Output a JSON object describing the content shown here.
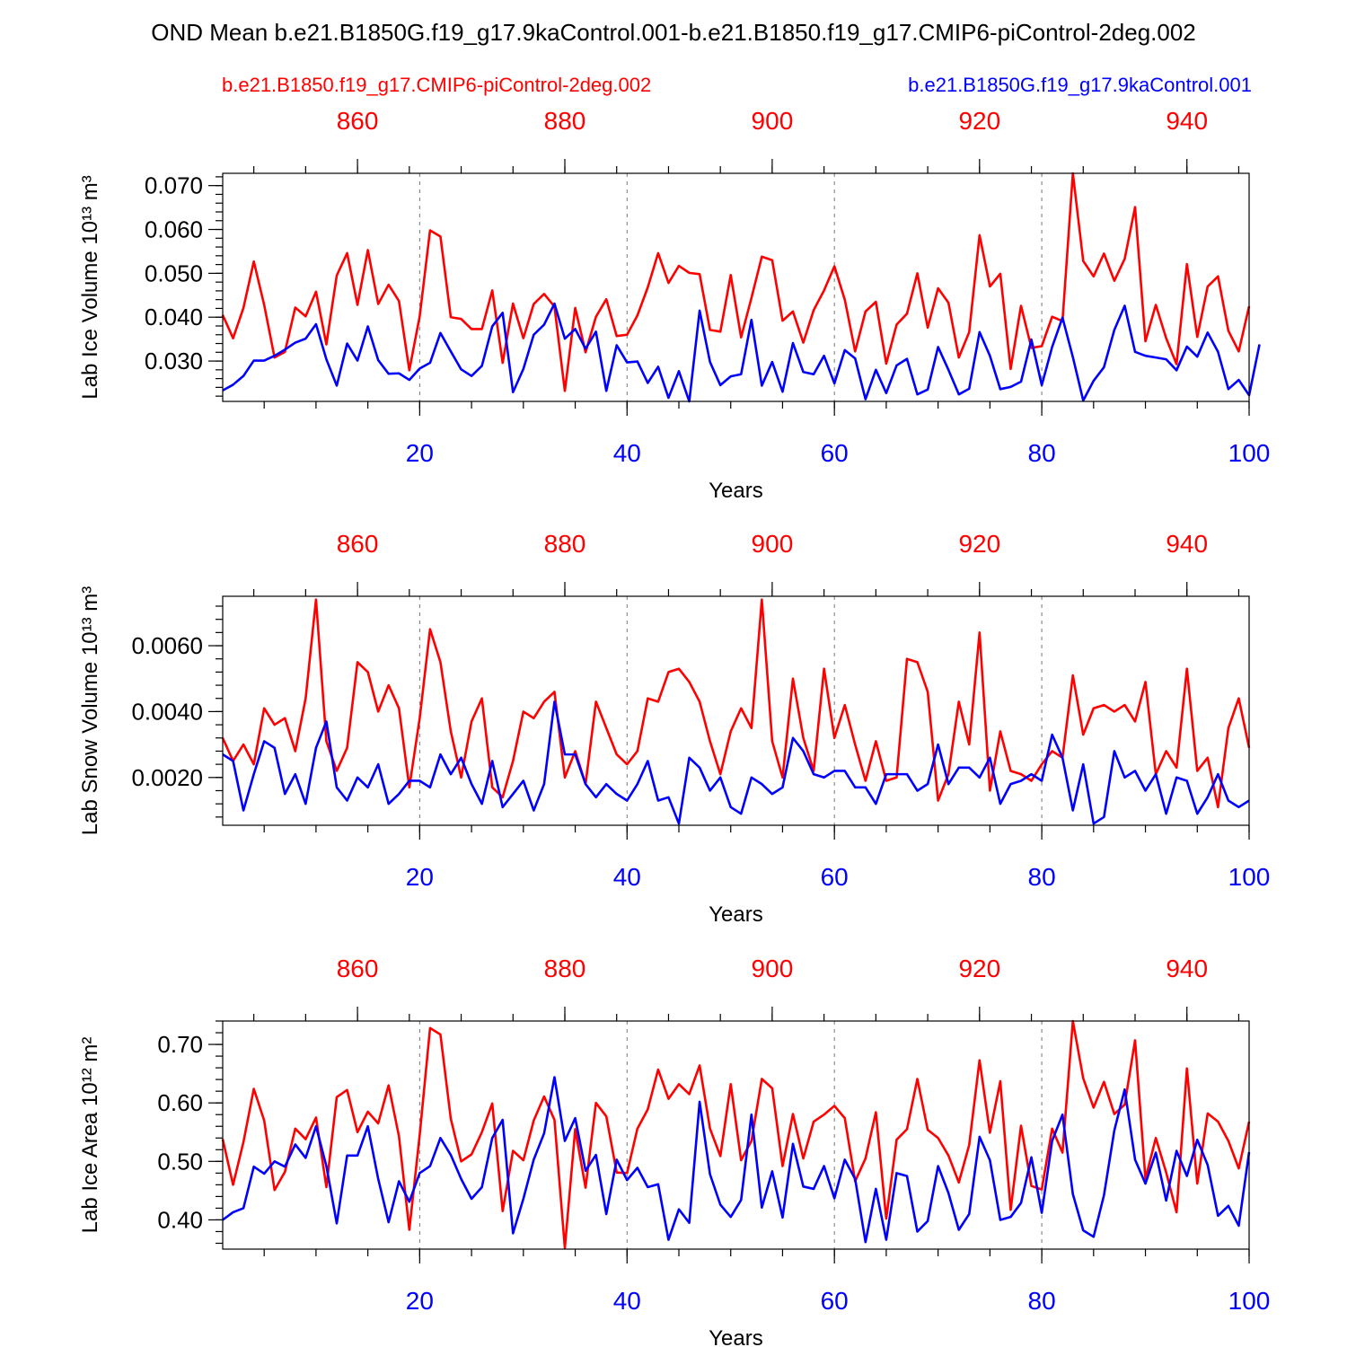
{
  "colors": {
    "control": "#ff0000",
    "experiment": "#0000ff",
    "axis": "#000000"
  },
  "title": "OND Mean b.e21.B1850G.f19_g17.9kaControl.001-b.e21.B1850.f19_g17.CMIP6-piControl-2deg.002",
  "legend": {
    "control": "b.e21.B1850.f19_g17.CMIP6-piControl-2deg.002",
    "experiment": "b.e21.B1850G.f19_g17.9kaControl.001"
  },
  "chart_data": [
    {
      "type": "line",
      "ylabel": "Lab Ice Volume 10¹³ m³",
      "xlabel": "Years",
      "xlim": [
        1,
        100
      ],
      "top_xlim": [
        847,
        946
      ],
      "ylim": [
        0.0208,
        0.0728
      ],
      "yticks": [
        0.03,
        0.04,
        0.05,
        0.06,
        0.07
      ],
      "ytick_labels": [
        "0.030",
        "0.040",
        "0.050",
        "0.060",
        "0.070"
      ],
      "xticks": [
        20,
        40,
        60,
        80,
        100
      ],
      "xtick_labels": [
        "20",
        "40",
        "60",
        "80",
        "100"
      ],
      "top_xticks": [
        860,
        880,
        900,
        920,
        940
      ],
      "top_xtick_labels": [
        "860",
        "880",
        "900",
        "920",
        "940"
      ],
      "grid": "dashed vertical at x ticks",
      "series": [
        {
          "name": "b.e21.B1850.f19_g17.CMIP6-piControl-2deg.002",
          "color": "#ff0000",
          "x_start": 1,
          "values": [
            0.0405,
            0.0352,
            0.0421,
            0.0527,
            0.0428,
            0.0308,
            0.0321,
            0.0422,
            0.0402,
            0.0458,
            0.0338,
            0.0495,
            0.0546,
            0.0428,
            0.0553,
            0.043,
            0.0474,
            0.0437,
            0.0279,
            0.0402,
            0.0598,
            0.0584,
            0.04,
            0.0396,
            0.0373,
            0.0373,
            0.0461,
            0.0296,
            0.0431,
            0.0352,
            0.043,
            0.0453,
            0.0424,
            0.0232,
            0.0421,
            0.032,
            0.0401,
            0.0441,
            0.0357,
            0.036,
            0.0404,
            0.0468,
            0.0546,
            0.0478,
            0.0517,
            0.0501,
            0.0498,
            0.0371,
            0.0367,
            0.0496,
            0.0354,
            0.0444,
            0.0538,
            0.053,
            0.0392,
            0.0413,
            0.0342,
            0.0416,
            0.0461,
            0.0516,
            0.044,
            0.0322,
            0.0413,
            0.0435,
            0.0294,
            0.0383,
            0.0408,
            0.05,
            0.0376,
            0.0466,
            0.0433,
            0.0308,
            0.0366,
            0.0587,
            0.047,
            0.0499,
            0.0282,
            0.0426,
            0.033,
            0.0334,
            0.0401,
            0.0391,
            0.0728,
            0.0528,
            0.0493,
            0.0545,
            0.0483,
            0.0533,
            0.0651,
            0.0345,
            0.0428,
            0.0352,
            0.0293,
            0.0521,
            0.0355,
            0.047,
            0.0493,
            0.0369,
            0.0322,
            0.0425
          ]
        },
        {
          "name": "b.e21.B1850G.f19_g17.9kaControl.001",
          "color": "#0000ff",
          "x_start": 1,
          "values": [
            0.0233,
            0.0246,
            0.0266,
            0.0301,
            0.0301,
            0.0312,
            0.0326,
            0.0342,
            0.0351,
            0.0384,
            0.0304,
            0.0244,
            0.034,
            0.0301,
            0.0379,
            0.0302,
            0.0271,
            0.0272,
            0.0257,
            0.0283,
            0.0296,
            0.0364,
            0.0322,
            0.0281,
            0.0266,
            0.0289,
            0.0379,
            0.041,
            0.0229,
            0.0282,
            0.036,
            0.0383,
            0.0431,
            0.0351,
            0.0373,
            0.0328,
            0.0367,
            0.0232,
            0.0336,
            0.0297,
            0.0299,
            0.025,
            0.0287,
            0.0216,
            0.0277,
            0.0208,
            0.0415,
            0.0298,
            0.0245,
            0.0265,
            0.027,
            0.0394,
            0.0244,
            0.0298,
            0.023,
            0.0341,
            0.0275,
            0.027,
            0.0312,
            0.0249,
            0.0325,
            0.0306,
            0.0213,
            0.028,
            0.0227,
            0.029,
            0.0305,
            0.0224,
            0.0235,
            0.0332,
            0.028,
            0.0224,
            0.0237,
            0.0366,
            0.0312,
            0.0236,
            0.0241,
            0.0253,
            0.0349,
            0.0245,
            0.0332,
            0.0399,
            0.0309,
            0.021,
            0.0255,
            0.0286,
            0.0371,
            0.0426,
            0.0321,
            0.0312,
            0.0308,
            0.0304,
            0.0279,
            0.0333,
            0.031,
            0.0365,
            0.0321,
            0.0236,
            0.0257,
            0.0222,
            0.0338
          ]
        }
      ]
    },
    {
      "type": "line",
      "ylabel": "Lab Snow Volume 10¹³ m³",
      "xlabel": "Years",
      "xlim": [
        1,
        100
      ],
      "top_xlim": [
        847,
        946
      ],
      "ylim": [
        0.00055,
        0.0075
      ],
      "yticks": [
        0.002,
        0.004,
        0.006
      ],
      "ytick_labels": [
        "0.0020",
        "0.0040",
        "0.0060"
      ],
      "xticks": [
        20,
        40,
        60,
        80,
        100
      ],
      "xtick_labels": [
        "20",
        "40",
        "60",
        "80",
        "100"
      ],
      "top_xticks": [
        860,
        880,
        900,
        920,
        940
      ],
      "top_xtick_labels": [
        "860",
        "880",
        "900",
        "920",
        "940"
      ],
      "grid": "dashed vertical at x ticks",
      "series": [
        {
          "name": "b.e21.B1850.f19_g17.CMIP6-piControl-2deg.002",
          "color": "#ff0000",
          "x_start": 1,
          "values": [
            0.0032,
            0.0025,
            0.003,
            0.0024,
            0.0041,
            0.0036,
            0.0038,
            0.0028,
            0.0044,
            0.0074,
            0.0031,
            0.0022,
            0.0029,
            0.0055,
            0.0052,
            0.004,
            0.0048,
            0.0041,
            0.0017,
            0.0038,
            0.0065,
            0.0055,
            0.0034,
            0.002,
            0.0037,
            0.0044,
            0.0017,
            0.0014,
            0.0025,
            0.004,
            0.0038,
            0.0043,
            0.0046,
            0.002,
            0.0028,
            0.0018,
            0.0043,
            0.0035,
            0.0027,
            0.0024,
            0.0028,
            0.0044,
            0.0043,
            0.0052,
            0.0053,
            0.0049,
            0.0043,
            0.0031,
            0.0021,
            0.0034,
            0.0041,
            0.0035,
            0.0074,
            0.0031,
            0.002,
            0.005,
            0.0032,
            0.0022,
            0.0053,
            0.0032,
            0.0042,
            0.003,
            0.0019,
            0.0031,
            0.0019,
            0.002,
            0.0056,
            0.0055,
            0.0046,
            0.0013,
            0.0021,
            0.0043,
            0.003,
            0.0064,
            0.0016,
            0.0034,
            0.0022,
            0.0021,
            0.0019,
            0.0024,
            0.0028,
            0.0026,
            0.0051,
            0.0033,
            0.0041,
            0.0042,
            0.004,
            0.0042,
            0.0037,
            0.0049,
            0.0021,
            0.0028,
            0.0023,
            0.0053,
            0.0022,
            0.0026,
            0.0011,
            0.0035,
            0.0044,
            0.0029
          ]
        },
        {
          "name": "b.e21.B1850G.f19_g17.9kaControl.001",
          "color": "#0000ff",
          "x_start": 1,
          "values": [
            0.0027,
            0.0025,
            0.001,
            0.0021,
            0.0031,
            0.0029,
            0.0015,
            0.0021,
            0.0012,
            0.0029,
            0.0037,
            0.0017,
            0.0013,
            0.002,
            0.0017,
            0.0024,
            0.0012,
            0.0015,
            0.0019,
            0.0019,
            0.0017,
            0.0027,
            0.0021,
            0.0026,
            0.0018,
            0.0012,
            0.0025,
            0.0011,
            0.0015,
            0.0019,
            0.001,
            0.0018,
            0.0043,
            0.0027,
            0.0027,
            0.0018,
            0.0014,
            0.0018,
            0.0015,
            0.0013,
            0.0018,
            0.0025,
            0.0013,
            0.0014,
            0.0006,
            0.0026,
            0.0023,
            0.0016,
            0.002,
            0.0011,
            0.0009,
            0.002,
            0.0018,
            0.0015,
            0.0017,
            0.0032,
            0.0028,
            0.0021,
            0.002,
            0.0022,
            0.0022,
            0.0017,
            0.0017,
            0.0012,
            0.0021,
            0.0021,
            0.0021,
            0.0016,
            0.0018,
            0.003,
            0.0018,
            0.0023,
            0.0023,
            0.002,
            0.0026,
            0.0012,
            0.0018,
            0.0019,
            0.0021,
            0.0019,
            0.0033,
            0.0026,
            0.001,
            0.0024,
            0.0006,
            0.0008,
            0.0028,
            0.002,
            0.0022,
            0.0016,
            0.0021,
            0.0009,
            0.002,
            0.0019,
            0.0009,
            0.0014,
            0.0021,
            0.0013,
            0.0011,
            0.0013
          ]
        }
      ]
    },
    {
      "type": "line",
      "ylabel": "Lab Ice Area 10¹² m²",
      "xlabel": "Years",
      "xlim": [
        1,
        100
      ],
      "top_xlim": [
        847,
        946
      ],
      "ylim": [
        0.35,
        0.74
      ],
      "yticks": [
        0.4,
        0.5,
        0.6,
        0.7
      ],
      "ytick_labels": [
        "0.40",
        "0.50",
        "0.60",
        "0.70"
      ],
      "xticks": [
        20,
        40,
        60,
        80,
        100
      ],
      "xtick_labels": [
        "20",
        "40",
        "60",
        "80",
        "100"
      ],
      "top_xticks": [
        860,
        880,
        900,
        920,
        940
      ],
      "top_xtick_labels": [
        "860",
        "880",
        "900",
        "920",
        "940"
      ],
      "grid": "dashed vertical at x ticks",
      "series": [
        {
          "name": "b.e21.B1850.f19_g17.CMIP6-piControl-2deg.002",
          "color": "#ff0000",
          "x_start": 1,
          "values": [
            0.538,
            0.46,
            0.533,
            0.624,
            0.57,
            0.451,
            0.482,
            0.556,
            0.538,
            0.575,
            0.456,
            0.61,
            0.622,
            0.55,
            0.585,
            0.565,
            0.63,
            0.543,
            0.383,
            0.545,
            0.728,
            0.717,
            0.573,
            0.5,
            0.512,
            0.55,
            0.599,
            0.415,
            0.518,
            0.502,
            0.57,
            0.611,
            0.571,
            0.352,
            0.555,
            0.455,
            0.6,
            0.577,
            0.481,
            0.48,
            0.556,
            0.589,
            0.657,
            0.607,
            0.632,
            0.615,
            0.664,
            0.556,
            0.509,
            0.632,
            0.502,
            0.535,
            0.641,
            0.625,
            0.492,
            0.581,
            0.505,
            0.568,
            0.58,
            0.595,
            0.574,
            0.466,
            0.505,
            0.584,
            0.402,
            0.537,
            0.555,
            0.641,
            0.554,
            0.54,
            0.51,
            0.464,
            0.528,
            0.673,
            0.549,
            0.637,
            0.417,
            0.561,
            0.458,
            0.452,
            0.556,
            0.515,
            0.74,
            0.642,
            0.592,
            0.636,
            0.581,
            0.597,
            0.707,
            0.47,
            0.54,
            0.481,
            0.413,
            0.659,
            0.462,
            0.582,
            0.568,
            0.535,
            0.488,
            0.568
          ]
        },
        {
          "name": "b.e21.B1850G.f19_g17.9kaControl.001",
          "color": "#0000ff",
          "x_start": 1,
          "values": [
            0.4,
            0.413,
            0.42,
            0.491,
            0.479,
            0.5,
            0.491,
            0.529,
            0.506,
            0.56,
            0.492,
            0.394,
            0.51,
            0.51,
            0.56,
            0.47,
            0.396,
            0.466,
            0.431,
            0.48,
            0.492,
            0.54,
            0.511,
            0.47,
            0.436,
            0.456,
            0.54,
            0.571,
            0.377,
            0.436,
            0.503,
            0.548,
            0.644,
            0.535,
            0.574,
            0.484,
            0.511,
            0.41,
            0.503,
            0.468,
            0.489,
            0.456,
            0.461,
            0.366,
            0.418,
            0.395,
            0.602,
            0.478,
            0.426,
            0.405,
            0.434,
            0.58,
            0.421,
            0.483,
            0.404,
            0.53,
            0.457,
            0.453,
            0.492,
            0.437,
            0.503,
            0.47,
            0.362,
            0.453,
            0.366,
            0.48,
            0.475,
            0.38,
            0.398,
            0.492,
            0.446,
            0.383,
            0.41,
            0.542,
            0.502,
            0.4,
            0.405,
            0.429,
            0.507,
            0.412,
            0.535,
            0.58,
            0.444,
            0.382,
            0.371,
            0.442,
            0.553,
            0.623,
            0.503,
            0.462,
            0.515,
            0.433,
            0.518,
            0.475,
            0.537,
            0.494,
            0.407,
            0.424,
            0.39,
            0.516
          ]
        }
      ]
    }
  ]
}
